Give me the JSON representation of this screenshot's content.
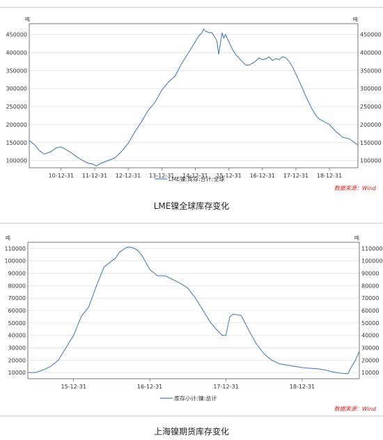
{
  "colors": {
    "line": "#4a7db8",
    "grid": "#d9d9d9",
    "axis": "#555555",
    "source": "#d42020"
  },
  "chart_data": [
    {
      "type": "line",
      "title": "",
      "unit_label": "吨",
      "ylim": [
        80000,
        480000
      ],
      "y_ticks": [
        100000,
        150000,
        200000,
        250000,
        300000,
        350000,
        400000,
        450000
      ],
      "x_tick_labels": [
        "10-12-31",
        "11-12-31",
        "12-12-31",
        "13-12-31",
        "14-12-31",
        "15-12-31",
        "16-12-31",
        "17-12-31",
        "18-12-31"
      ],
      "x_tick_pos": [
        1,
        2,
        3,
        4,
        5,
        6,
        7,
        8,
        9
      ],
      "xlim": [
        0.05,
        9.85
      ],
      "grid": "horizontal",
      "source": "数据来源：Wind",
      "caption": "LME镍全球库存变化",
      "series": [
        {
          "name": "LME镍:库存:合计:全球",
          "x": [
            0.05,
            0.2,
            0.35,
            0.5,
            0.7,
            0.85,
            1.0,
            1.15,
            1.3,
            1.5,
            1.65,
            1.8,
            1.95,
            2.05,
            2.2,
            2.4,
            2.6,
            2.8,
            3.0,
            3.2,
            3.4,
            3.6,
            3.8,
            4.0,
            4.2,
            4.4,
            4.6,
            4.8,
            5.0,
            5.1,
            5.2,
            5.25,
            5.3,
            5.4,
            5.5,
            5.6,
            5.65,
            5.7,
            5.8,
            5.85,
            5.9,
            6.0,
            6.1,
            6.2,
            6.35,
            6.5,
            6.6,
            6.75,
            6.9,
            7.0,
            7.1,
            7.2,
            7.3,
            7.4,
            7.5,
            7.6,
            7.7,
            7.8,
            7.9,
            8.0,
            8.1,
            8.2,
            8.3,
            8.4,
            8.5,
            8.6,
            8.7,
            8.8,
            9.0,
            9.2,
            9.4,
            9.6,
            9.75,
            9.85
          ],
          "values": [
            155000,
            145000,
            128000,
            118000,
            125000,
            135000,
            138000,
            130000,
            122000,
            108000,
            100000,
            93000,
            90000,
            85000,
            93000,
            100000,
            107000,
            125000,
            148000,
            180000,
            208000,
            240000,
            262000,
            295000,
            318000,
            335000,
            370000,
            400000,
            430000,
            445000,
            455000,
            465000,
            460000,
            455000,
            455000,
            440000,
            430000,
            395000,
            455000,
            440000,
            450000,
            430000,
            410000,
            395000,
            380000,
            365000,
            365000,
            372000,
            385000,
            380000,
            382000,
            388000,
            378000,
            383000,
            380000,
            388000,
            385000,
            375000,
            360000,
            340000,
            320000,
            300000,
            278000,
            258000,
            240000,
            225000,
            215000,
            210000,
            200000,
            180000,
            165000,
            160000,
            150000,
            143000
          ]
        }
      ]
    },
    {
      "type": "line",
      "title": "",
      "unit_label": "吨",
      "ylim": [
        5000,
        115000
      ],
      "y_ticks": [
        10000,
        20000,
        30000,
        40000,
        50000,
        60000,
        70000,
        80000,
        90000,
        100000,
        110000
      ],
      "x_tick_labels": [
        "15-12-31",
        "16-12-31",
        "17-12-31",
        "18-12-31"
      ],
      "x_tick_pos": [
        1,
        2,
        3,
        4
      ],
      "xlim": [
        0.4,
        4.75
      ],
      "grid": "horizontal",
      "source": "数据来源：Wind",
      "caption": "上海镍期货库存变化",
      "series": [
        {
          "name": "库存小计:镍:总计",
          "x": [
            0.4,
            0.5,
            0.6,
            0.7,
            0.8,
            0.9,
            1.0,
            1.1,
            1.2,
            1.3,
            1.4,
            1.5,
            1.55,
            1.6,
            1.65,
            1.7,
            1.75,
            1.8,
            1.85,
            1.9,
            2.0,
            2.1,
            2.2,
            2.3,
            2.4,
            2.5,
            2.6,
            2.7,
            2.8,
            2.9,
            2.95,
            3.0,
            3.05,
            3.1,
            3.2,
            3.3,
            3.4,
            3.5,
            3.6,
            3.7,
            3.8,
            3.9,
            4.0,
            4.1,
            4.2,
            4.3,
            4.4,
            4.5,
            4.6,
            4.65,
            4.7,
            4.75
          ],
          "values": [
            10000,
            10000,
            12000,
            15000,
            20000,
            30000,
            40000,
            55000,
            63000,
            80000,
            95000,
            100000,
            102000,
            107000,
            109000,
            111000,
            111000,
            110000,
            108000,
            104000,
            93000,
            88000,
            88000,
            85000,
            82000,
            78000,
            70000,
            60000,
            50000,
            43000,
            40000,
            40000,
            55000,
            57000,
            56000,
            44000,
            33000,
            25000,
            20000,
            17000,
            16000,
            15000,
            14000,
            13500,
            13000,
            12000,
            10500,
            9500,
            9000,
            15000,
            20000,
            27000
          ]
        }
      ]
    }
  ]
}
